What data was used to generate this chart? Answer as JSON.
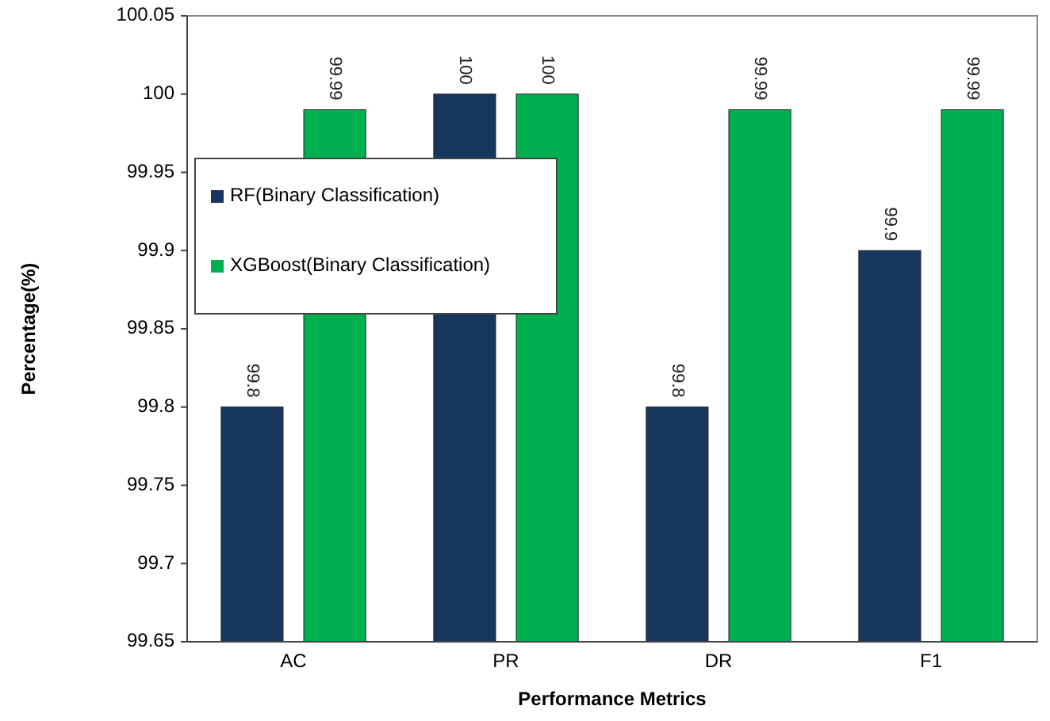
{
  "chart_data": {
    "type": "bar",
    "xlabel": "Performance Metrics",
    "ylabel": "Percentage(%)",
    "categories": [
      "AC",
      "PR",
      "DR",
      "F1"
    ],
    "series": [
      {
        "name": "RF(Binary Classification)",
        "color": "#17375e",
        "values": [
          99.8,
          100,
          99.8,
          99.9
        ]
      },
      {
        "name": "XGBoost(Binary Classification)",
        "color": "#00b050",
        "values": [
          99.99,
          100,
          99.99,
          99.99
        ]
      }
    ],
    "ylim": [
      99.65,
      100.05
    ],
    "yticks": [
      99.65,
      99.7,
      99.75,
      99.8,
      99.85,
      99.9,
      99.95,
      100,
      100.05
    ],
    "data_labels": true,
    "legend": "top left",
    "grid": false
  }
}
